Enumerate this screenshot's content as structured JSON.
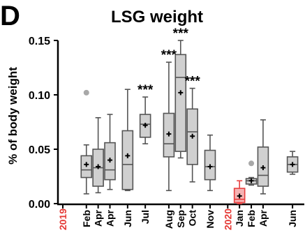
{
  "panel_letter": "D",
  "chart_data": {
    "type": "box",
    "title": "LSG weight",
    "ylabel": "% of body weight",
    "xlabel": "",
    "ylim": [
      0,
      0.15
    ],
    "yticks": [
      0.0,
      0.05,
      0.1,
      0.15
    ],
    "ytick_labels": [
      "0.00",
      "0.05",
      "0.10",
      "0.15"
    ],
    "x_axis_range_months": [
      0,
      41
    ],
    "year_markers": [
      {
        "label": "2019",
        "month_index": 0
      },
      {
        "label": "2020",
        "month_index": 28
      }
    ],
    "colors": {
      "box_fill": "#d0d0d0",
      "box_stroke": "#555555",
      "highlight_stroke": "#e84040",
      "highlight_fill": "#f5b3b3",
      "outlier": "#a8a8a8",
      "year_text": "#e53935"
    },
    "boxes": [
      {
        "label": "Feb",
        "month_index": 4,
        "min": 0.009,
        "q1": 0.024,
        "median": 0.031,
        "q3": 0.044,
        "max": 0.054,
        "mean": 0.036,
        "outliers": [
          0.102
        ],
        "sig": ""
      },
      {
        "label": "Apr",
        "month_index": 6,
        "min": 0.01,
        "q1": 0.016,
        "median": 0.033,
        "q3": 0.05,
        "max": 0.079,
        "mean": 0.034,
        "outliers": [],
        "sig": ""
      },
      {
        "label": "Apr",
        "month_index": 8,
        "min": 0.013,
        "q1": 0.022,
        "median": 0.031,
        "q3": 0.056,
        "max": 0.082,
        "mean": 0.04,
        "outliers": [],
        "sig": ""
      },
      {
        "label": "Jun",
        "month_index": 11,
        "min": 0.012,
        "q1": 0.013,
        "median": 0.036,
        "q3": 0.067,
        "max": 0.105,
        "mean": 0.044,
        "outliers": [],
        "sig": ""
      },
      {
        "label": "Jul",
        "month_index": 14,
        "min": 0.055,
        "q1": 0.061,
        "median": 0.073,
        "q3": 0.082,
        "max": 0.098,
        "mean": 0.072,
        "outliers": [],
        "sig": "***"
      },
      {
        "label": "Aug",
        "month_index": 18,
        "min": 0.012,
        "q1": 0.043,
        "median": 0.055,
        "q3": 0.083,
        "max": 0.13,
        "mean": 0.064,
        "outliers": [],
        "sig": "***"
      },
      {
        "label": "Sep",
        "month_index": 20,
        "min": 0.042,
        "q1": 0.048,
        "median": 0.116,
        "q3": 0.137,
        "max": 0.15,
        "mean": 0.102,
        "outliers": [],
        "sig": "***"
      },
      {
        "label": "Oct",
        "month_index": 22,
        "min": 0.02,
        "q1": 0.036,
        "median": 0.066,
        "q3": 0.087,
        "max": 0.106,
        "mean": 0.062,
        "outliers": [],
        "sig": "***"
      },
      {
        "label": "Nov",
        "month_index": 25,
        "min": 0.012,
        "q1": 0.022,
        "median": 0.034,
        "q3": 0.049,
        "max": 0.063,
        "mean": 0.034,
        "outliers": [],
        "sig": ""
      },
      {
        "label": "Jan",
        "month_index": 30,
        "min": 0.0,
        "q1": 0.001,
        "median": 0.004,
        "q3": 0.014,
        "max": 0.021,
        "mean": 0.007,
        "outliers": [],
        "sig": "",
        "highlight": true
      },
      {
        "label": "Feb",
        "month_index": 32,
        "min": 0.017,
        "q1": 0.018,
        "median": 0.021,
        "q3": 0.023,
        "max": 0.024,
        "mean": 0.021,
        "outliers": [
          0.037
        ],
        "sig": ""
      },
      {
        "label": "Apr",
        "month_index": 34,
        "min": 0.009,
        "q1": 0.016,
        "median": 0.026,
        "q3": 0.052,
        "max": 0.077,
        "mean": 0.033,
        "outliers": [],
        "sig": ""
      },
      {
        "label": "Jun",
        "month_index": 39,
        "min": 0.027,
        "q1": 0.029,
        "median": 0.036,
        "q3": 0.043,
        "max": 0.048,
        "mean": 0.036,
        "outliers": [],
        "sig": ""
      }
    ]
  }
}
